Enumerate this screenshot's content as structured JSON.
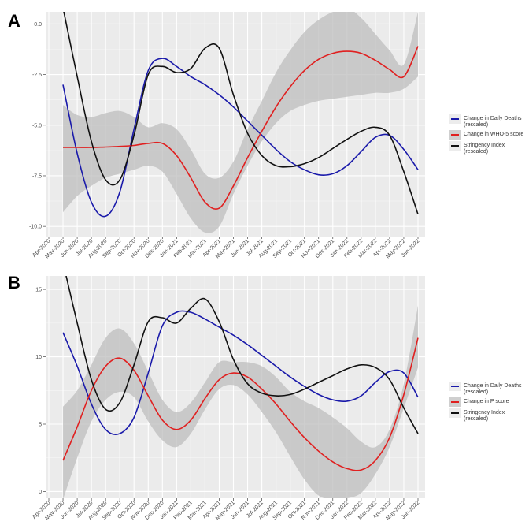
{
  "chart_data": [
    {
      "panel": "A",
      "type": "line",
      "title": "",
      "xlabel": "",
      "ylabel": "",
      "ylim": [
        -10.5,
        0.6
      ],
      "yticks": [
        0.0,
        -2.5,
        -5.0,
        -7.5,
        -10.0
      ],
      "ytick_labels": [
        "0.0",
        "-2.5",
        "-5.0",
        "-7.5",
        "-10.0"
      ],
      "grid": true,
      "legend_position": "right",
      "categories": [
        "Apr-2020",
        "May-2020",
        "Jun-2020",
        "Jul-2020",
        "Aug-2020",
        "Sep-2020",
        "Oct-2020",
        "Nov-2020",
        "Dec-2020",
        "Jan-2021",
        "Feb-2021",
        "Mar-2021",
        "Apr-2021",
        "May-2021",
        "Jun-2021",
        "Jul-2021",
        "Aug-2021",
        "Sep-2021",
        "Oct-2021",
        "Nov-2021",
        "Dec-2021",
        "Jan-2022",
        "Feb-2022",
        "Mar-2022",
        "Apr-2022",
        "May-2022",
        "Jun-2022"
      ],
      "x_start_index": 1,
      "series": [
        {
          "name": "Change in Daily Deaths (rescaled)",
          "color": "#1a1aaa",
          "values": [
            -3.0,
            -6.4,
            -8.8,
            -9.5,
            -8.3,
            -5.2,
            -2.3,
            -1.7,
            -2.1,
            -2.6,
            -3.0,
            -3.5,
            -4.1,
            -4.8,
            -5.5,
            -6.2,
            -6.8,
            -7.2,
            -7.45,
            -7.4,
            -7.0,
            -6.3,
            -5.6,
            -5.5,
            -6.2,
            -7.2
          ]
        },
        {
          "name": "Change in WHO-5 score",
          "color": "#e02020",
          "values": [
            -6.1,
            -6.1,
            -6.1,
            -6.08,
            -6.05,
            -6.0,
            -5.9,
            -5.9,
            -6.5,
            -7.6,
            -8.8,
            -9.1,
            -8.0,
            -6.6,
            -5.3,
            -4.1,
            -3.1,
            -2.3,
            -1.75,
            -1.45,
            -1.35,
            -1.45,
            -1.8,
            -2.25,
            -2.6,
            -1.1
          ],
          "ci_lower": [
            -9.3,
            -8.5,
            -8.0,
            -7.6,
            -7.4,
            -7.2,
            -7.0,
            -7.3,
            -8.4,
            -9.6,
            -10.3,
            -10.0,
            -8.4,
            -7.0,
            -5.8,
            -4.9,
            -4.3,
            -4.0,
            -3.8,
            -3.7,
            -3.6,
            -3.5,
            -3.4,
            -3.4,
            -3.2,
            -2.6
          ],
          "ci_upper": [
            -4.0,
            -4.5,
            -4.6,
            -4.4,
            -4.3,
            -4.6,
            -5.1,
            -4.9,
            -5.2,
            -6.2,
            -7.4,
            -7.6,
            -6.8,
            -5.2,
            -3.8,
            -2.4,
            -1.3,
            -0.4,
            0.2,
            0.6,
            0.8,
            0.3,
            -0.5,
            -1.3,
            -2.0,
            0.6
          ]
        },
        {
          "name": "Stringency Index (rescaled)",
          "color": "#111111",
          "values": [
            0.8,
            -2.6,
            -5.8,
            -7.7,
            -7.7,
            -5.5,
            -2.5,
            -2.1,
            -2.4,
            -2.2,
            -1.2,
            -1.2,
            -3.5,
            -5.4,
            -6.5,
            -7.0,
            -7.05,
            -6.9,
            -6.6,
            -6.15,
            -5.7,
            -5.3,
            -5.1,
            -5.5,
            -7.3,
            -9.4
          ]
        }
      ]
    },
    {
      "panel": "B",
      "type": "line",
      "title": "",
      "xlabel": "",
      "ylabel": "",
      "ylim": [
        -0.5,
        16
      ],
      "yticks": [
        15,
        10,
        5,
        0
      ],
      "ytick_labels": [
        "15",
        "10",
        "5",
        "0"
      ],
      "grid": true,
      "legend_position": "right",
      "categories": [
        "Apr-2020",
        "May-2020",
        "Jun-2020",
        "Jul-2020",
        "Aug-2020",
        "Sep-2020",
        "Oct-2020",
        "Nov-2020",
        "Dec-2020",
        "Jan-2021",
        "Feb-2021",
        "Mar-2021",
        "Apr-2021",
        "May-2021",
        "Jun-2021",
        "Jul-2021",
        "Aug-2021",
        "Sep-2021",
        "Oct-2021",
        "Nov-2021",
        "Dec-2021",
        "Jan-2022",
        "Feb-2022",
        "Mar-2022",
        "Apr-2022",
        "May-2022",
        "Jun-2022"
      ],
      "x_start_index": 1,
      "series": [
        {
          "name": "Change in Daily Deaths (rescaled)",
          "color": "#1a1aaa",
          "values": [
            11.8,
            9.3,
            6.5,
            4.6,
            4.3,
            5.5,
            8.8,
            12.3,
            13.3,
            13.3,
            12.8,
            12.2,
            11.6,
            10.9,
            10.1,
            9.3,
            8.5,
            7.8,
            7.2,
            6.8,
            6.7,
            7.1,
            8.1,
            8.9,
            8.8,
            7.0
          ],
          "hide_below": false
        },
        {
          "name": "Change in P score",
          "color": "#e02020",
          "values": [
            2.3,
            4.8,
            7.5,
            9.3,
            9.9,
            9.0,
            7.1,
            5.3,
            4.6,
            5.3,
            6.9,
            8.3,
            8.8,
            8.5,
            7.6,
            6.5,
            5.2,
            4.0,
            3.0,
            2.2,
            1.7,
            1.6,
            2.3,
            4.0,
            7.2,
            11.4
          ],
          "ci_lower": [
            -0.6,
            2.5,
            5.2,
            6.8,
            7.4,
            7.0,
            5.2,
            3.8,
            3.3,
            4.3,
            6.1,
            7.6,
            7.9,
            7.2,
            5.9,
            4.4,
            2.6,
            0.9,
            -0.3,
            -0.6,
            -0.5,
            -0.1,
            1.3,
            3.3,
            6.2,
            9.2
          ],
          "ci_upper": [
            6.3,
            7.5,
            9.4,
            11.4,
            12.1,
            11.0,
            8.9,
            6.8,
            5.9,
            6.6,
            8.1,
            9.6,
            9.6,
            9.6,
            9.3,
            8.5,
            7.4,
            6.7,
            6.2,
            5.5,
            4.7,
            3.7,
            3.3,
            4.6,
            8.0,
            13.8
          ]
        },
        {
          "name": "Stringency Index (rescaled)",
          "color": "#111111",
          "values": [
            17.0,
            12.5,
            8.3,
            6.1,
            6.6,
            9.4,
            12.6,
            12.9,
            12.5,
            13.6,
            14.3,
            12.6,
            9.8,
            8.0,
            7.3,
            7.1,
            7.2,
            7.6,
            8.1,
            8.6,
            9.1,
            9.4,
            9.2,
            8.3,
            6.2,
            4.3
          ]
        }
      ]
    }
  ],
  "panels": {
    "A": {
      "letter": "A",
      "legend": [
        {
          "label_line1": "Change in Daily Deaths",
          "label_line2": "(rescaled)",
          "color": "#1a1aaa",
          "band": false
        },
        {
          "label_line1": "Change in WHO-5 score",
          "label_line2": "",
          "color": "#e02020",
          "band": true
        },
        {
          "label_line1": "Stringency Index",
          "label_line2": "(rescaled)",
          "color": "#111111",
          "band": false
        }
      ]
    },
    "B": {
      "letter": "B",
      "legend": [
        {
          "label_line1": "Change in Daily Deaths",
          "label_line2": "(rescaled)",
          "color": "#1a1aaa",
          "band": false
        },
        {
          "label_line1": "Change in P score",
          "label_line2": "",
          "color": "#e02020",
          "band": true
        },
        {
          "label_line1": "Stringency Index",
          "label_line2": "(rescaled)",
          "color": "#111111",
          "band": false
        }
      ]
    }
  }
}
